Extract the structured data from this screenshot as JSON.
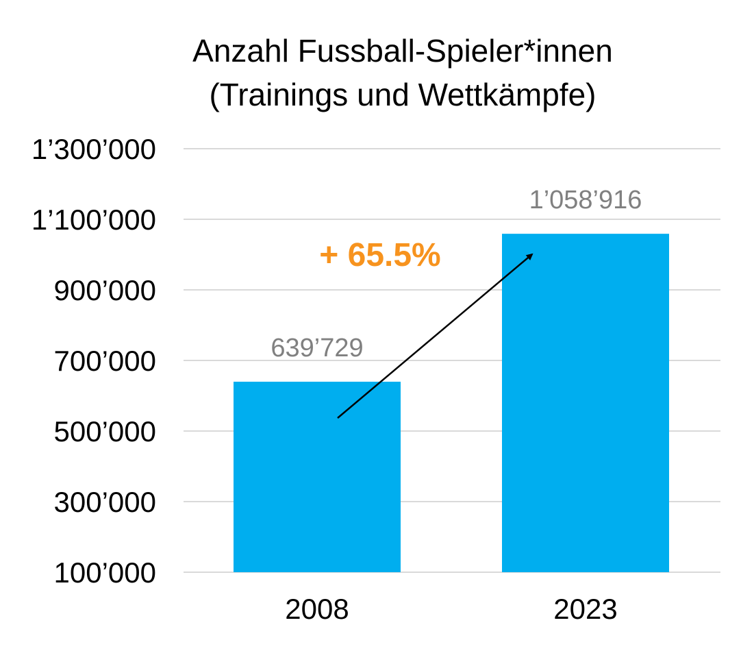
{
  "chart_data": {
    "type": "bar",
    "title_lines": [
      "Anzahl Fussball-Spieler*innen",
      "(Trainings und Wettkämpfe)"
    ],
    "categories": [
      "2008",
      "2023"
    ],
    "values": [
      639729,
      1058916
    ],
    "value_labels": [
      "639’729",
      "1’058’916"
    ],
    "ylim": [
      100000,
      1300000
    ],
    "yticks": [
      100000,
      300000,
      500000,
      700000,
      900000,
      1100000,
      1300000
    ],
    "ytick_labels": [
      "100’000",
      "300’000",
      "500’000",
      "700’000",
      "900’000",
      "1’100’000",
      "1’300’000"
    ],
    "xlabel": "",
    "ylabel": "",
    "grid": true,
    "legend": "none",
    "annotation": {
      "text": "+ 65.5%",
      "type": "arrow",
      "from_category": "2008",
      "to_category": "2023"
    },
    "colors": {
      "bar": "#00AEEF",
      "value_label": "#808080",
      "grid": "#D9D9D9",
      "annotation": "#F7931E",
      "arrow": "#000000",
      "text": "#000000"
    }
  }
}
